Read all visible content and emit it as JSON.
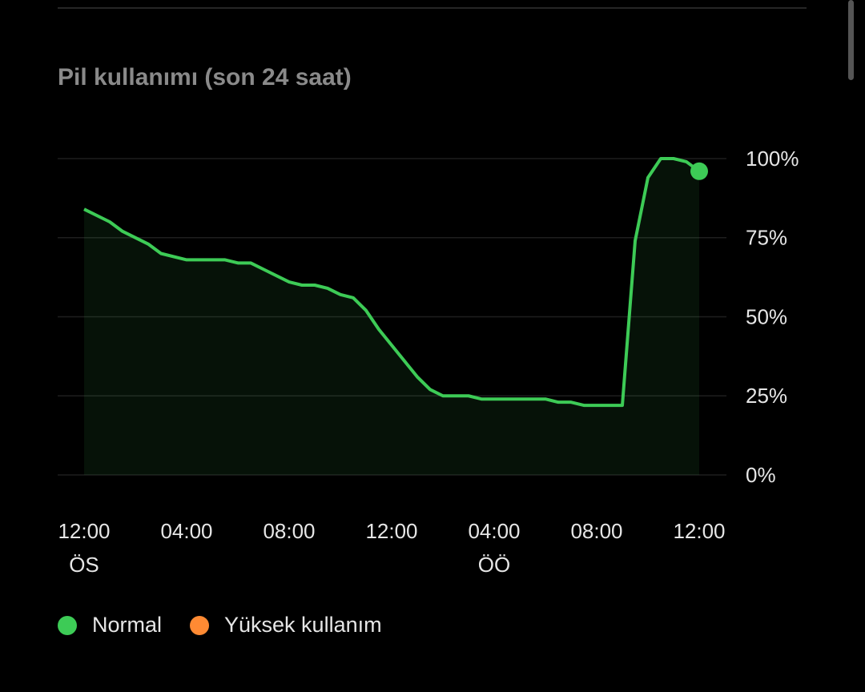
{
  "chart_data": {
    "type": "area",
    "title": "Pil kullanımı (son 24 saat)",
    "x": [
      0,
      1,
      1.5,
      2.5,
      3,
      4,
      5.5,
      6,
      6.5,
      7,
      8,
      8.5,
      9,
      9.5,
      10,
      10.5,
      11,
      11.5,
      12,
      12.5,
      13,
      13.5,
      14,
      15,
      15.5,
      18,
      18.5,
      19,
      19.5,
      21,
      21.5,
      22,
      22.5,
      23,
      23.5,
      24
    ],
    "series": [
      {
        "name": "Normal",
        "color": "#3dcb56",
        "values": [
          84,
          80,
          77,
          73,
          70,
          68,
          68,
          67,
          67,
          65,
          61,
          60,
          60,
          59,
          57,
          56,
          52,
          46,
          41,
          36,
          31,
          27,
          25,
          25,
          24,
          24,
          23,
          23,
          22,
          22,
          74,
          94,
          100,
          100,
          99,
          96
        ]
      },
      {
        "name": "Yüksek kullanım",
        "color": "#ff8a33",
        "values": [
          null,
          null,
          null,
          null,
          null,
          null,
          null,
          null,
          null,
          null,
          null,
          null,
          null,
          null,
          null,
          null,
          null,
          null,
          null,
          null,
          null,
          null,
          null,
          null,
          null,
          null,
          null,
          null,
          null,
          null,
          null,
          null,
          null,
          null,
          null,
          null
        ]
      }
    ],
    "xlim": [
      0,
      24
    ],
    "xticks": [
      {
        "value": 0,
        "label": "12:00"
      },
      {
        "value": 4,
        "label": "04:00"
      },
      {
        "value": 8,
        "label": "08:00"
      },
      {
        "value": 12,
        "label": "12:00"
      },
      {
        "value": 16,
        "label": "04:00"
      },
      {
        "value": 20,
        "label": "08:00"
      },
      {
        "value": 24,
        "label": "12:00"
      }
    ],
    "xtick_periods": [
      "ÖS",
      null,
      null,
      null,
      "ÖÖ",
      null,
      null
    ],
    "ylim": [
      0,
      100
    ],
    "yticks": [
      {
        "value": 0,
        "label": "0%"
      },
      {
        "value": 25,
        "label": "25%"
      },
      {
        "value": 50,
        "label": "50%"
      },
      {
        "value": 75,
        "label": "75%"
      },
      {
        "value": 100,
        "label": "100%"
      }
    ],
    "grid": true,
    "legend": "bottom-left"
  }
}
